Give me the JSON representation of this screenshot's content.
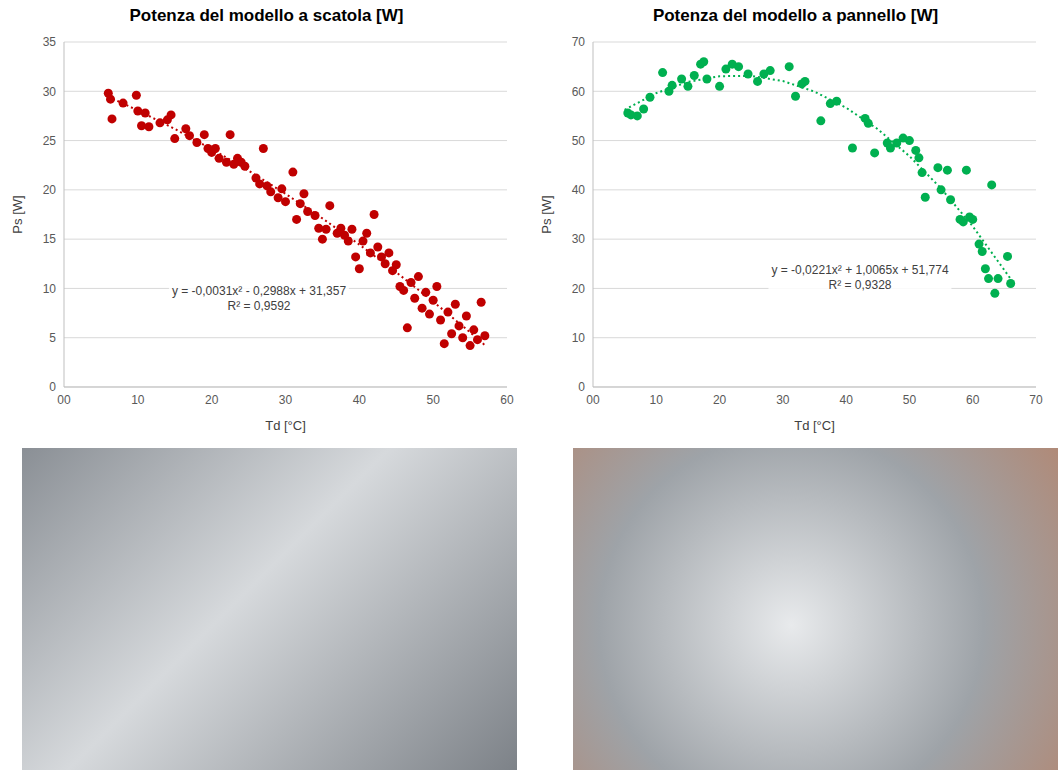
{
  "chart_data": [
    {
      "type": "scatter",
      "title": "Potenza del modello a scatola [W]",
      "x_label": "Td [°C]",
      "y_label": "Ps [W]",
      "xlim": [
        0,
        60
      ],
      "xticks": [
        {
          "value": 0,
          "label": "00"
        },
        10,
        20,
        30,
        40,
        50,
        60
      ],
      "ylim": [
        0,
        35
      ],
      "yticks": [
        0,
        5,
        10,
        15,
        20,
        25,
        30,
        35
      ],
      "grid": true,
      "annotations": [
        "y = -0,0031x² - 0,2988x + 31,357",
        "R² = 0,9592"
      ],
      "series": [
        {
          "type": "scatter",
          "color": "#c00000",
          "marker": "circle",
          "x": [
            6,
            6.3,
            6.5,
            8,
            9.8,
            10,
            10.5,
            11,
            11.5,
            13,
            14,
            14.5,
            15,
            16.5,
            17,
            18,
            19,
            19.5,
            20,
            20.5,
            21,
            22,
            22.5,
            23,
            23.5,
            24,
            24.5,
            26,
            26.5,
            27,
            27.5,
            28,
            29,
            29.5,
            30,
            31,
            31.5,
            32,
            32.5,
            33,
            34,
            34.5,
            35,
            35.5,
            36,
            37,
            37.5,
            38,
            38.5,
            39,
            39.5,
            40,
            40.5,
            41,
            41.5,
            42,
            42.5,
            43,
            43.5,
            44,
            44.5,
            45,
            45.5,
            46,
            46.5,
            47,
            47.5,
            48,
            48.5,
            49,
            49.5,
            50,
            50.5,
            51,
            51.5,
            52,
            52.5,
            53,
            53.5,
            54,
            54.5,
            55,
            55.5,
            56,
            56.5,
            57
          ],
          "values": [
            29.8,
            29.2,
            27.2,
            28.8,
            29.6,
            28,
            26.5,
            27.8,
            26.4,
            26.8,
            27.1,
            27.6,
            25.2,
            26.2,
            25.5,
            24.8,
            25.6,
            24.2,
            23.8,
            24.2,
            23.2,
            22.8,
            25.6,
            22.6,
            23.2,
            22.8,
            22.4,
            21.2,
            20.6,
            24.2,
            20.4,
            19.8,
            19.2,
            20.1,
            18.8,
            21.8,
            17,
            18.6,
            19.6,
            17.8,
            17.4,
            16.1,
            15,
            16,
            18.4,
            15.6,
            16.1,
            15.4,
            14.8,
            16,
            13.2,
            12,
            14.8,
            15.6,
            13.6,
            17.5,
            14.2,
            13.2,
            12.5,
            13.6,
            11.8,
            12.4,
            10.2,
            9.8,
            6,
            10.6,
            9,
            11.2,
            8,
            9.6,
            7.4,
            8.8,
            10.2,
            6.8,
            4.4,
            7.6,
            5.4,
            8.4,
            6.2,
            5,
            7.2,
            4.2,
            5.8,
            4.8,
            8.6,
            5.2
          ]
        },
        {
          "type": "line",
          "color": "#c00000",
          "line_style": "dotted",
          "x": [
            6,
            10,
            15,
            20,
            25,
            30,
            35,
            40,
            45,
            50,
            55,
            57
          ],
          "values": [
            29.45,
            28.06,
            26.18,
            24.14,
            21.95,
            19.6,
            17.1,
            14.45,
            11.63,
            8.67,
            5.55,
            4.25
          ]
        }
      ]
    },
    {
      "type": "scatter",
      "title": "Potenza del modello a pannello [W]",
      "x_label": "Td [°C]",
      "y_label": "Ps [W]",
      "xlim": [
        0,
        70
      ],
      "xticks": [
        {
          "value": 0,
          "label": "00"
        },
        10,
        20,
        30,
        40,
        50,
        60,
        70
      ],
      "ylim": [
        0,
        70
      ],
      "yticks": [
        0,
        10,
        20,
        30,
        40,
        50,
        60,
        70
      ],
      "grid": true,
      "annotations": [
        "y = -0,0221x² + 1,0065x + 51,774",
        "R² = 0,9328"
      ],
      "series": [
        {
          "type": "scatter",
          "color": "#00b050",
          "marker": "circle",
          "x": [
            5.5,
            6,
            7,
            8,
            9,
            11,
            12,
            12.5,
            14,
            15,
            16,
            17,
            17.5,
            18,
            20,
            21,
            22,
            23,
            24.5,
            26,
            27,
            28,
            31,
            32,
            33,
            33.5,
            36,
            37.5,
            38.5,
            41,
            43,
            43.5,
            44.5,
            46.5,
            47,
            48,
            49,
            50,
            51,
            51.5,
            52,
            52.5,
            54.5,
            55,
            56,
            56.5,
            58,
            58.5,
            59,
            59.5,
            60,
            61,
            61.5,
            62,
            62.5,
            63,
            63.5,
            64,
            65.5,
            66
          ],
          "values": [
            55.6,
            55.2,
            55,
            56.4,
            58.8,
            63.8,
            60,
            61.2,
            62.5,
            61,
            63.2,
            65.5,
            66,
            62.5,
            61,
            64.5,
            65.5,
            65,
            63.5,
            62,
            63.5,
            64.2,
            65,
            59,
            61.5,
            62,
            54,
            57.5,
            58,
            48.5,
            54.5,
            53.5,
            47.5,
            49.5,
            48.5,
            49.5,
            50.5,
            50,
            48,
            46.5,
            43.5,
            38.5,
            44.5,
            40,
            44,
            38,
            34,
            33.5,
            44,
            34.5,
            34,
            29,
            27.5,
            24,
            22,
            41,
            19,
            22,
            26.5,
            21
          ]
        },
        {
          "type": "line",
          "color": "#00b050",
          "line_style": "dotted",
          "x": [
            5,
            10,
            15,
            20,
            25,
            30,
            35,
            40,
            45,
            50,
            55,
            60,
            66
          ],
          "values": [
            56.25,
            59.63,
            61.9,
            63.06,
            63.12,
            62.08,
            59.93,
            56.67,
            52.31,
            46.85,
            40.28,
            32.6,
            21.93
          ]
        }
      ]
    }
  ]
}
